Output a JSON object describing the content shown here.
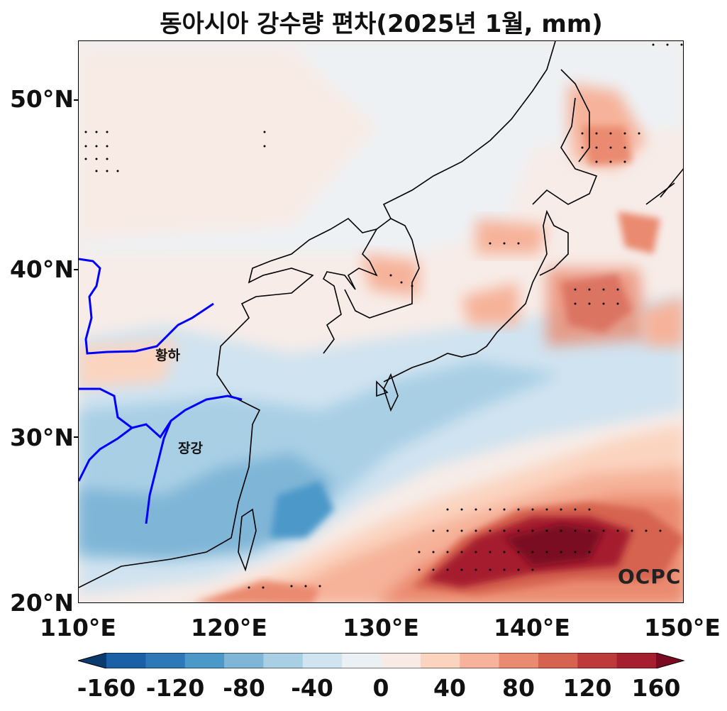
{
  "title": "동아시아 강수량 편차(2025년 1월, mm)",
  "latitude_ticks": [
    "50°N",
    "40°N",
    "30°N",
    "20°N"
  ],
  "longitude_ticks": [
    "110°E",
    "120°E",
    "130°E",
    "140°E",
    "150°E"
  ],
  "river_labels": {
    "yellow": "황하",
    "yangtze": "장강"
  },
  "logo": "OCPC",
  "colorbar": {
    "tick_labels": [
      "-160",
      "-120",
      "-80",
      "-40",
      "0",
      "40",
      "80",
      "120",
      "160"
    ],
    "colors": [
      "#0b3a6e",
      "#1b5fa6",
      "#2e78b7",
      "#4b98c9",
      "#7fb5d7",
      "#a9cfe5",
      "#d0e3f0",
      "#eaf0f4",
      "#f8ebe5",
      "#fbd4c0",
      "#f6b29a",
      "#ea8a70",
      "#d5634f",
      "#bc3a3a",
      "#a51f2e",
      "#7a0b22"
    ]
  },
  "colors": {
    "coast": "#000000",
    "river": "#0000ff"
  }
}
